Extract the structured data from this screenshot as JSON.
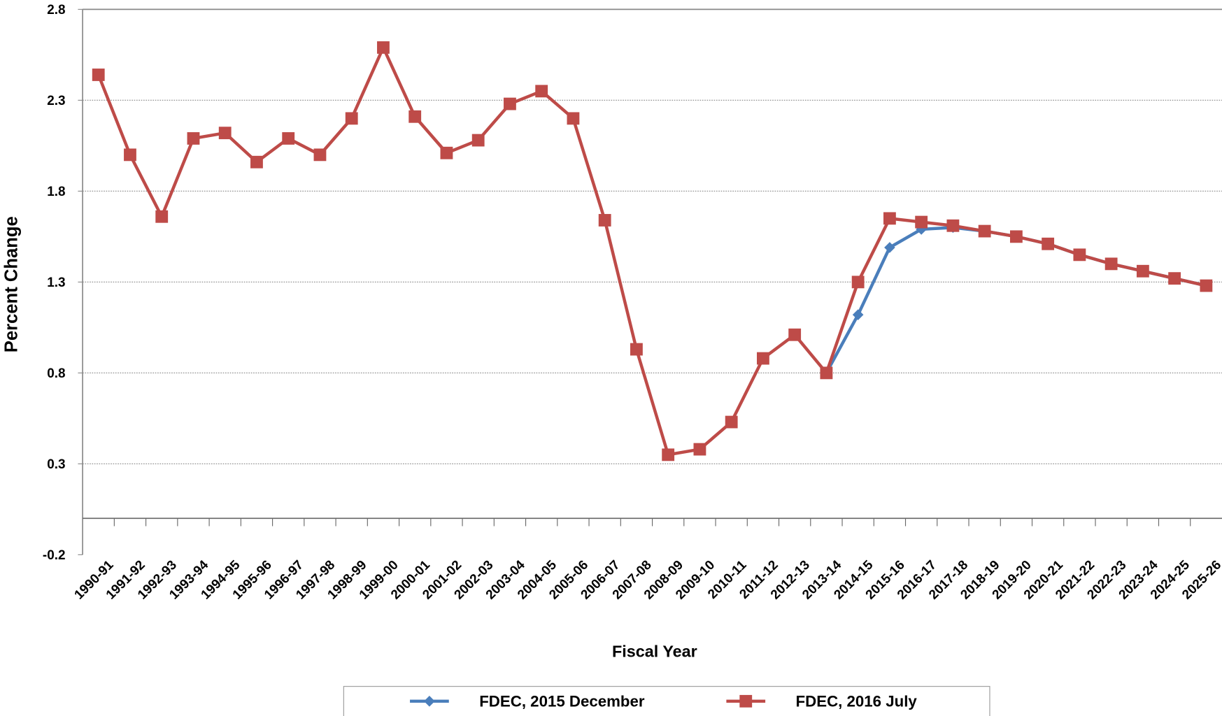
{
  "chart_data": {
    "type": "line",
    "x_label": "Fiscal Year",
    "y_label": "Percent Change",
    "categories": [
      "1990-91",
      "1991-92",
      "1992-93",
      "1993-94",
      "1994-95",
      "1995-96",
      "1996-97",
      "1997-98",
      "1998-99",
      "1999-00",
      "2000-01",
      "2001-02",
      "2002-03",
      "2003-04",
      "2004-05",
      "2005-06",
      "2006-07",
      "2007-08",
      "2008-09",
      "2009-10",
      "2010-11",
      "2011-12",
      "2012-13",
      "2013-14",
      "2014-15",
      "2015-16",
      "2016-17",
      "2017-18",
      "2018-19",
      "2019-20",
      "2020-21",
      "2021-22",
      "2022-23",
      "2023-24",
      "2024-25",
      "2025-26"
    ],
    "series": [
      {
        "name": "FDEC, 2015 December",
        "color": "#4a7ebb",
        "marker": "diamond",
        "values": [
          null,
          null,
          null,
          null,
          null,
          null,
          null,
          null,
          null,
          null,
          null,
          null,
          null,
          null,
          null,
          null,
          null,
          null,
          null,
          null,
          null,
          null,
          null,
          0.8,
          1.12,
          1.49,
          1.59,
          1.6,
          1.58,
          1.55,
          1.51,
          1.45,
          1.4,
          1.36,
          1.32,
          1.28
        ]
      },
      {
        "name": "FDEC, 2016 July",
        "color": "#be4b48",
        "marker": "square",
        "values": [
          2.44,
          2.0,
          1.66,
          2.09,
          2.12,
          1.96,
          2.09,
          2.0,
          2.2,
          2.59,
          2.21,
          2.01,
          2.08,
          2.28,
          2.35,
          2.2,
          1.64,
          0.93,
          0.35,
          0.38,
          0.53,
          0.88,
          1.01,
          0.8,
          1.3,
          1.65,
          1.63,
          1.61,
          1.58,
          1.55,
          1.51,
          1.45,
          1.4,
          1.36,
          1.32,
          1.28
        ]
      }
    ],
    "ylim": [
      -0.2,
      2.8
    ],
    "yticks": [
      -0.2,
      0.3,
      0.8,
      1.3,
      1.8,
      2.3,
      2.8
    ],
    "grid": true,
    "legend": "bottom"
  }
}
